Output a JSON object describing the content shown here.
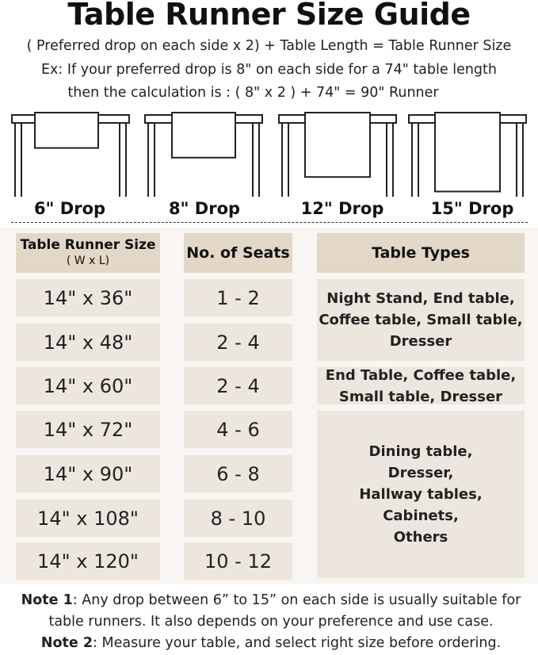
{
  "title": "Table Runner Size Guide",
  "formula": "( Preferred drop on each side x 2) + Table Length = Table Runner Size",
  "example_line1": "Ex: If your preferred drop is 8\" on each side for a 74\" table length",
  "example_line2": "then the calculation is : ( 8\" x 2 ) + 74\" = 90\" Runner",
  "drops": [
    {
      "label": "6\" Drop",
      "inches": 6
    },
    {
      "label": "8\" Drop",
      "inches": 8
    },
    {
      "label": "12\" Drop",
      "inches": 12
    },
    {
      "label": "15\" Drop",
      "inches": 15
    }
  ],
  "table": {
    "headers": {
      "size": "Table Runner Size",
      "size_sub": "( W x L)",
      "seats": "No. of Seats",
      "types": "Table Types"
    },
    "rows": [
      {
        "size": "14\" x 36\"",
        "seats": "1 - 2"
      },
      {
        "size": "14\" x 48\"",
        "seats": "2 - 4"
      },
      {
        "size": "14\" x 60\"",
        "seats": "2 - 4"
      },
      {
        "size": "14\" x 72\"",
        "seats": "4 - 6"
      },
      {
        "size": "14\" x 90\"",
        "seats": "6 - 8"
      },
      {
        "size": "14\" x 108\"",
        "seats": "8 - 10"
      },
      {
        "size": "14\" x 120\"",
        "seats": "10 - 12"
      }
    ],
    "types": [
      "Night Stand, End table, Coffee table, Small table, Dresser",
      "End Table, Coffee table, Small table, Dresser",
      "Dining table, Dresser, Hallway tables, Cabinets, Others"
    ]
  },
  "notes": {
    "note1_label": "Note 1",
    "note1_text": ": Any drop between 6” to 15” on each side is usually suitable for table runners. It also depends on your preference and use case.",
    "note2_label": "Note 2",
    "note2_text": ": Measure your table, and select right size before ordering."
  },
  "colors": {
    "header_cell": "#e3d7c8",
    "body_cell": "#ede6df",
    "panel": "#f8f5f2"
  }
}
